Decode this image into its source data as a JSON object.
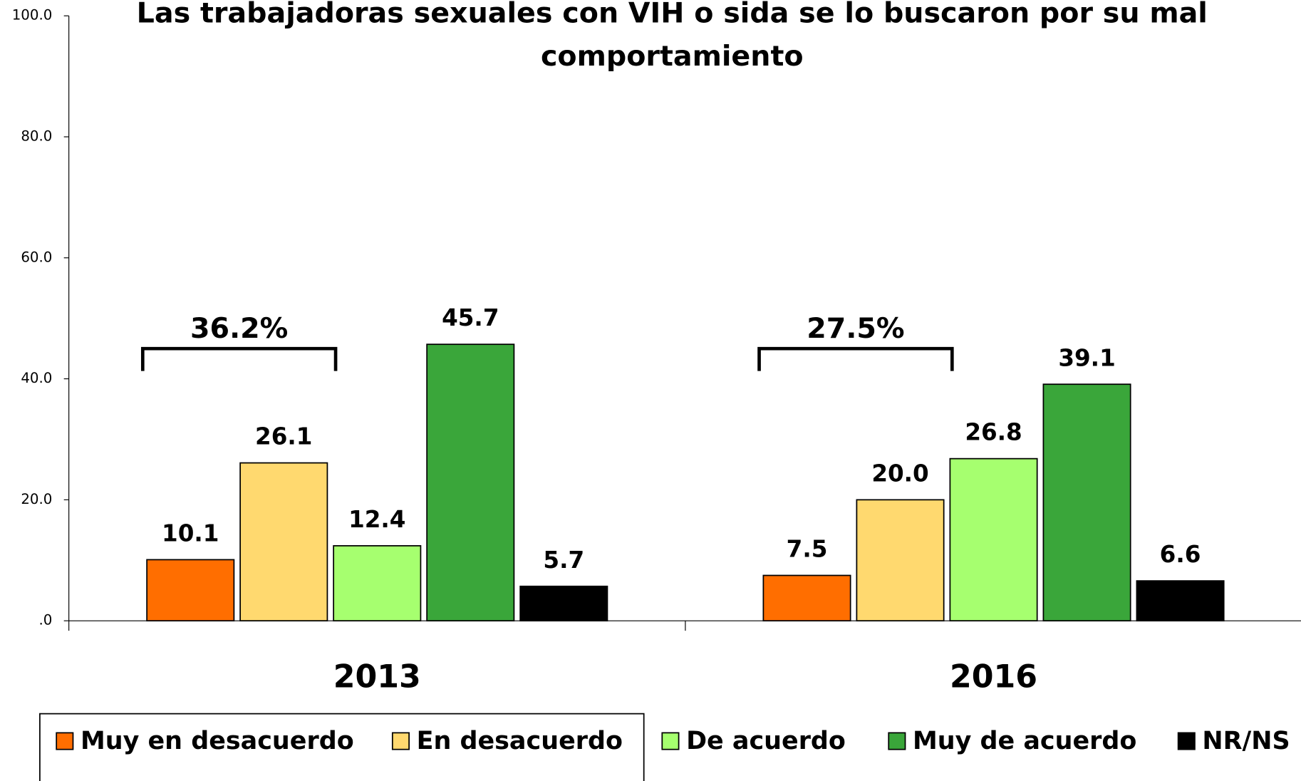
{
  "chart_data": {
    "type": "bar",
    "title": "Las trabajadoras sexuales con VIH o sida se lo buscaron por su mal comportamiento",
    "categories": [
      "2013",
      "2016"
    ],
    "series": [
      {
        "name": "Muy en desacuerdo",
        "color": "#ff6e00",
        "values": [
          10.1,
          7.5
        ],
        "value_labels": [
          "10.1",
          "7.5"
        ]
      },
      {
        "name": "En desacuerdo",
        "color": "#ffd96f",
        "values": [
          26.1,
          20.0
        ],
        "value_labels": [
          "26.1",
          "20.0"
        ]
      },
      {
        "name": "De acuerdo",
        "color": "#a6ff6f",
        "values": [
          12.4,
          26.8
        ],
        "value_labels": [
          "12.4",
          "26.8"
        ]
      },
      {
        "name": "Muy de acuerdo",
        "color": "#3aa63a",
        "values": [
          45.7,
          39.1
        ],
        "value_labels": [
          "45.7",
          "39.1"
        ]
      },
      {
        "name": "NR/NS",
        "color": "#000000",
        "values": [
          5.7,
          6.6
        ],
        "value_labels": [
          "5.7",
          "6.6"
        ]
      }
    ],
    "annotations": [
      "36.2%",
      "27.5%"
    ],
    "ylim": [
      0,
      100
    ],
    "yticks": [
      {
        "value": 0,
        "label": ".0"
      },
      {
        "value": 20,
        "label": "20.0"
      },
      {
        "value": 40,
        "label": "40.0"
      },
      {
        "value": 60,
        "label": "60.0"
      },
      {
        "value": 80,
        "label": "80.0"
      },
      {
        "value": 100,
        "label": "100.0"
      }
    ],
    "legend": "bottom"
  }
}
